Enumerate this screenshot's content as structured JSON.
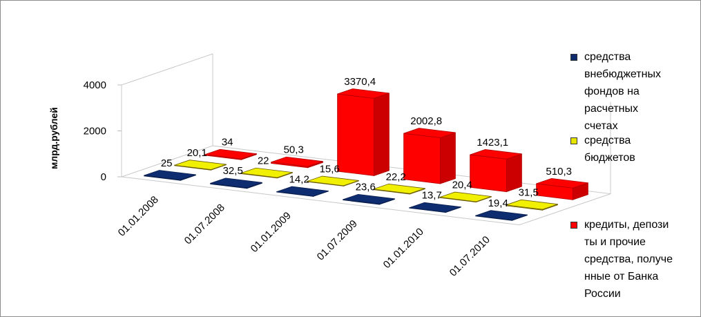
{
  "chart_data": {
    "type": "bar",
    "title": "",
    "xlabel": "",
    "ylabel": "млрд.рублей",
    "ylim": [
      0,
      4000
    ],
    "yticks": [
      "0",
      "2000",
      "4000"
    ],
    "categories": [
      "01.01.2008",
      "01.07.2008",
      "01.01.2009",
      "01.07.2009",
      "01.01.2010",
      "01.07.2010"
    ],
    "legend_position": "right",
    "grid": false,
    "series": [
      {
        "name": "средства внебюджетных фондов на расчетных счетах",
        "legend_lines": [
          "средства",
          "внебюджетных",
          "фондов на",
          "расчетных",
          "счетах"
        ],
        "color": "#0d2b6b",
        "values": [
          25,
          32.5,
          14.2,
          23.6,
          13.7,
          19.4
        ],
        "labels": [
          "25",
          "32,5",
          "14,2",
          "23,6",
          "13,7",
          "19,4"
        ]
      },
      {
        "name": "средства бюджетов",
        "legend_lines": [
          "средства",
          "бюджетов"
        ],
        "color": "#e5e500",
        "values": [
          20.1,
          22,
          15.6,
          22.2,
          20.4,
          31.5
        ],
        "labels": [
          "20,1",
          "22",
          "15,6",
          "22,2",
          "20,4",
          "31,5"
        ]
      },
      {
        "name": "кредиты, депозиты и прочие средства, полученные от Банка России",
        "legend_lines": [
          "кредиты, депози",
          "ты и прочие",
          "средства, получе",
          "нные от Банка",
          "России"
        ],
        "color": "#ff0000",
        "values": [
          34,
          50.3,
          3370.4,
          2002.8,
          1423.1,
          510.3
        ],
        "labels": [
          "34",
          "50,3",
          "3370,4",
          "2002,8",
          "1423,1",
          "510,3"
        ]
      }
    ]
  }
}
